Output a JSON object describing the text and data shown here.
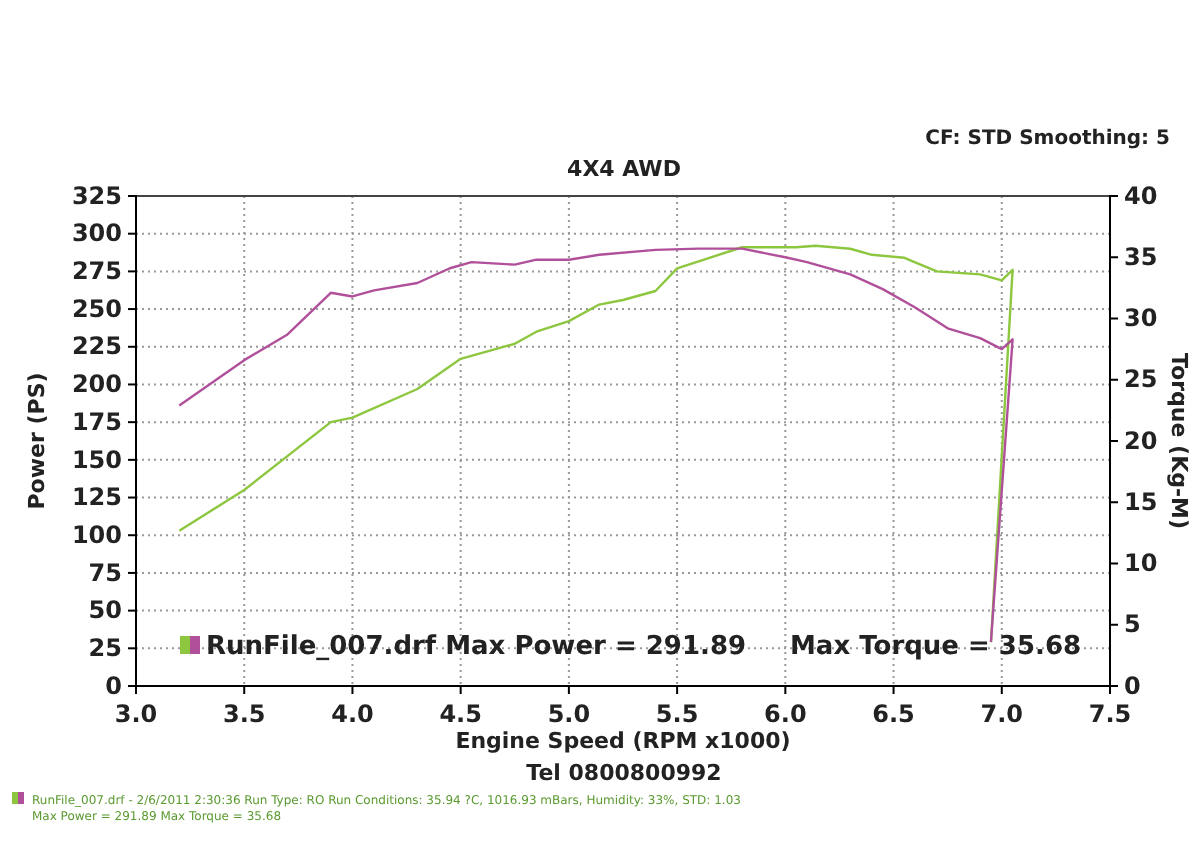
{
  "chart_data": {
    "type": "line",
    "title": "4X4 AWD",
    "xlabel": "Engine Speed (RPM x1000)",
    "ylabel": "Power (PS)",
    "y2label": "Torque (Kg-M)",
    "annotations": [
      "CF: STD  Smoothing: 5",
      "RunFile_007.drf Max Power = 291.89",
      "Max Torque = 35.68",
      "Tel 0800800992",
      "RunFile_007.drf - 2/6/2011 2:30:36  Run Type: RO  Run Conditions: 35.94 ?C, 1016.93 mBars,  Humidity:  33%, STD: 1.03",
      "Max Power = 291.89  Max Torque = 35.68"
    ],
    "series": [
      {
        "color": "#8dc63f",
        "x": [
          3.2,
          3.5,
          3.9,
          4.0,
          4.3,
          4.5,
          4.75,
          4.85,
          5.0,
          5.14,
          5.25,
          5.4,
          5.5,
          5.8,
          6.05,
          6.14,
          6.3,
          6.4,
          6.55,
          6.7,
          6.9,
          7.0,
          7.05,
          6.95
        ],
        "values": [
          103,
          130,
          175,
          178,
          197,
          217,
          227,
          235,
          242,
          253,
          256,
          262,
          277,
          291,
          291,
          292,
          290,
          286,
          284,
          275,
          273,
          269,
          276,
          29
        ]
      },
      {
        "color": "#b0509a",
        "axis": "y2",
        "x": [
          3.2,
          3.5,
          3.7,
          3.9,
          4.0,
          4.1,
          4.3,
          4.45,
          4.55,
          4.75,
          4.85,
          5.0,
          5.14,
          5.4,
          5.6,
          5.8,
          6.0,
          6.1,
          6.3,
          6.45,
          6.6,
          6.75,
          6.9,
          7.0,
          7.05,
          6.95
        ],
        "values": [
          22.9,
          26.6,
          28.7,
          32.1,
          31.8,
          32.3,
          32.9,
          34.1,
          34.6,
          34.4,
          34.8,
          34.8,
          35.2,
          35.6,
          35.7,
          35.7,
          35.0,
          34.6,
          33.6,
          32.4,
          30.9,
          29.2,
          28.4,
          27.5,
          28.3,
          3.6
        ]
      }
    ],
    "xlim": [
      3.0,
      7.5
    ],
    "xticks": [
      {
        "value": 3,
        "label": "3.0"
      },
      3.5,
      {
        "value": 4,
        "label": "4.0"
      },
      4.5,
      {
        "value": 5,
        "label": "5.0"
      },
      5.5,
      {
        "value": 6,
        "label": "6.0"
      },
      6.5,
      {
        "value": 7,
        "label": "7.0"
      },
      7.5
    ],
    "ylim": [
      0,
      325
    ],
    "yticks": [
      0,
      25,
      50,
      75,
      100,
      125,
      150,
      175,
      200,
      225,
      250,
      275,
      300,
      325
    ],
    "y2lim": [
      0,
      40
    ],
    "y2ticks": [
      0,
      5,
      10,
      15,
      20,
      25,
      30,
      35,
      40
    ],
    "grid": true,
    "line_style": "solid",
    "marker": "none"
  }
}
